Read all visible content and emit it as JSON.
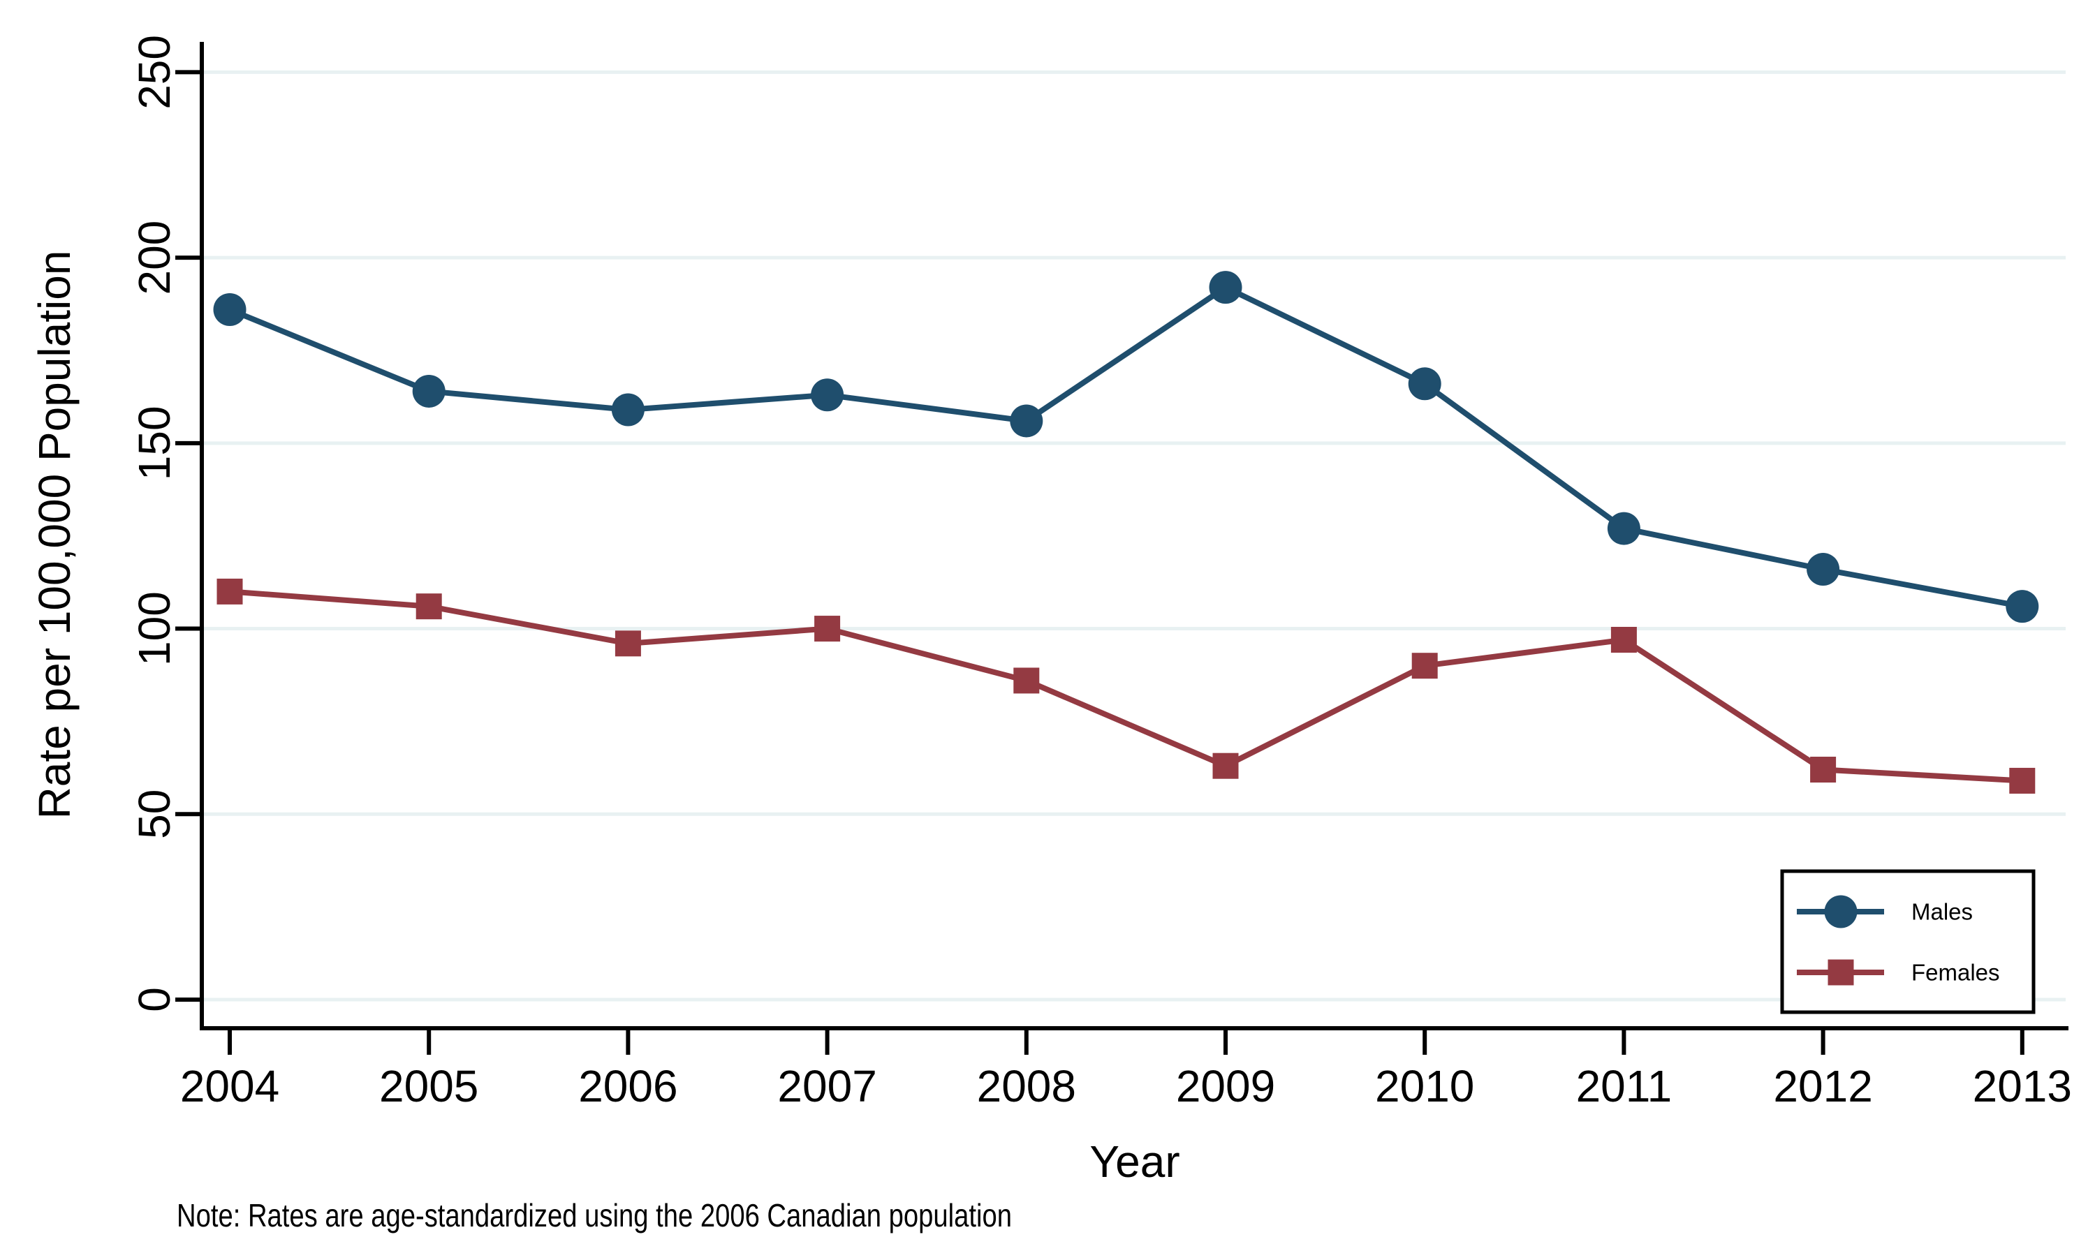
{
  "chart_data": {
    "type": "line",
    "title": "",
    "xlabel": "Year",
    "ylabel": "Rate per 100,000 Population",
    "x": [
      2004,
      2005,
      2006,
      2007,
      2008,
      2009,
      2010,
      2011,
      2012,
      2013
    ],
    "series": [
      {
        "name": "Males",
        "marker": "circle",
        "color": "#1f4e6d",
        "values": [
          186,
          164,
          159,
          163,
          156,
          192,
          166,
          127,
          116,
          106
        ]
      },
      {
        "name": "Females",
        "marker": "square",
        "color": "#943a42",
        "values": [
          110,
          106,
          96,
          100,
          86,
          63,
          90,
          97,
          62,
          59
        ]
      }
    ],
    "ylim": [
      0,
      250
    ],
    "yticks": [
      0,
      50,
      100,
      150,
      200,
      250
    ],
    "grid": "horizontal",
    "gridline_color": "#e8f1f2",
    "axis_color": "#000000",
    "legend_position": "bottom-right",
    "legend_border_color": "#000000",
    "note": "Note: Rates are age-standardized using the 2006 Canadian population"
  }
}
